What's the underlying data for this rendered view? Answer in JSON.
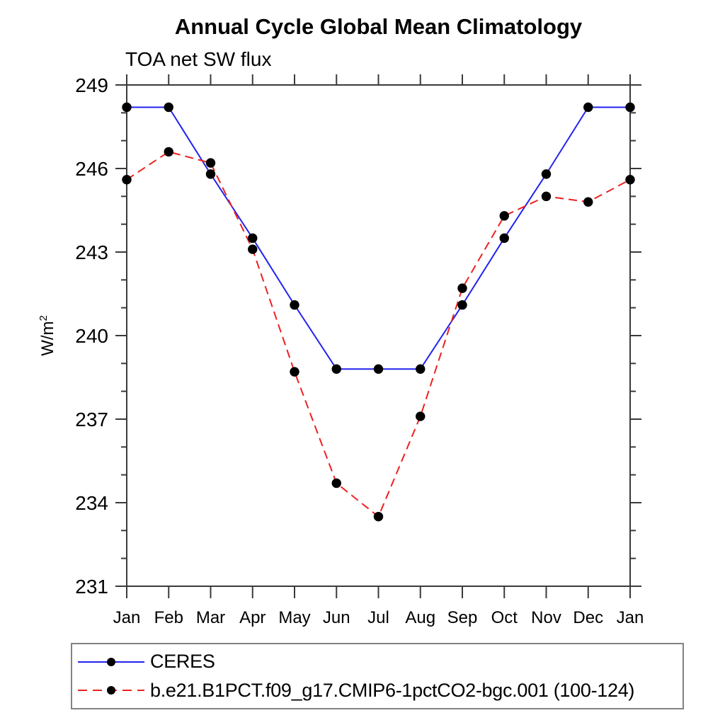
{
  "chart_data": {
    "type": "line",
    "title": "Annual Cycle Global Mean Climatology",
    "subtitle": "TOA net SW flux",
    "ylabel": "W/m2",
    "ylabel_display": {
      "base": "W/m",
      "exp": "2"
    },
    "x_categories": [
      "Jan",
      "Feb",
      "Mar",
      "Apr",
      "May",
      "Jun",
      "Jul",
      "Aug",
      "Sep",
      "Oct",
      "Nov",
      "Dec",
      "Jan"
    ],
    "ylim": [
      231,
      249
    ],
    "yticks": [
      249,
      246,
      243,
      240,
      237,
      234,
      231
    ],
    "minor_tick_interval": 1,
    "grid": false,
    "legend_position": "bottom-left-box",
    "marker": "filled-circle",
    "marker_color": "#000000",
    "frame_color": "#3a3a3a",
    "series": [
      {
        "name": "CERES",
        "color": "#2222ee",
        "line_style": "solid",
        "values": [
          248.2,
          248.2,
          245.8,
          243.5,
          241.1,
          238.8,
          238.8,
          238.8,
          241.1,
          243.5,
          245.8,
          248.2,
          248.2
        ]
      },
      {
        "name": "b.e21.B1PCT.f09_g17.CMIP6-1pctCO2-bgc.001 (100-124)",
        "color": "#ee2020",
        "line_style": "dashed",
        "values": [
          245.6,
          246.6,
          246.2,
          243.1,
          238.7,
          234.7,
          233.5,
          237.1,
          241.7,
          244.3,
          245.0,
          244.8,
          245.6
        ]
      }
    ]
  }
}
